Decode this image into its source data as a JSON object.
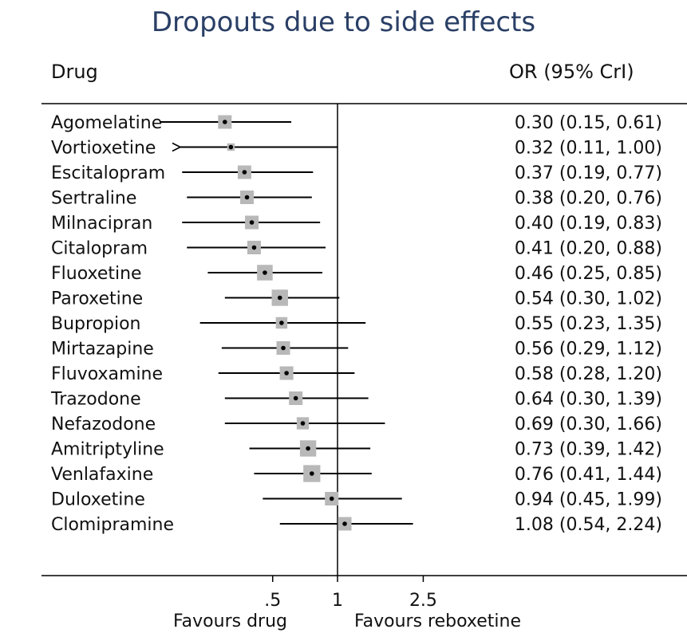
{
  "chart_data": {
    "type": "forest",
    "title": "Dropouts due to side effects",
    "column_headers": {
      "label": "Drug",
      "estimate": "OR (95% CrI)"
    },
    "reference_line": 1,
    "scale": "log",
    "x_ticks": [
      ".5",
      "1",
      "2.5"
    ],
    "x_tick_values": [
      0.5,
      1,
      2.5
    ],
    "favours_left": "Favours drug",
    "favours_right": "Favours reboxetine",
    "rows": [
      {
        "drug": "Agomelatine",
        "or": 0.3,
        "lo": 0.15,
        "hi": 0.61,
        "text": "0.30 (0.15, 0.61)",
        "weight": 1.0
      },
      {
        "drug": "Vortioxetine",
        "or": 0.32,
        "lo": 0.11,
        "hi": 1.0,
        "text": "0.32 (0.11, 1.00)",
        "weight": 0.55,
        "lo_arrow": true
      },
      {
        "drug": "Escitalopram",
        "or": 0.37,
        "lo": 0.19,
        "hi": 0.77,
        "text": "0.37 (0.19, 0.77)",
        "weight": 1.0
      },
      {
        "drug": "Sertraline",
        "or": 0.38,
        "lo": 0.2,
        "hi": 0.76,
        "text": "0.38 (0.20, 0.76)",
        "weight": 1.0
      },
      {
        "drug": "Milnacipran",
        "or": 0.4,
        "lo": 0.19,
        "hi": 0.83,
        "text": "0.40 (0.19, 0.83)",
        "weight": 1.0
      },
      {
        "drug": "Citalopram",
        "or": 0.41,
        "lo": 0.2,
        "hi": 0.88,
        "text": "0.41 (0.20, 0.88)",
        "weight": 1.0
      },
      {
        "drug": "Fluoxetine",
        "or": 0.46,
        "lo": 0.25,
        "hi": 0.85,
        "text": "0.46 (0.25, 0.85)",
        "weight": 1.15
      },
      {
        "drug": "Paroxetine",
        "or": 0.54,
        "lo": 0.3,
        "hi": 1.02,
        "text": "0.54 (0.30, 1.02)",
        "weight": 1.2
      },
      {
        "drug": "Bupropion",
        "or": 0.55,
        "lo": 0.23,
        "hi": 1.35,
        "text": "0.55 (0.23, 1.35)",
        "weight": 0.85
      },
      {
        "drug": "Mirtazapine",
        "or": 0.56,
        "lo": 0.29,
        "hi": 1.12,
        "text": "0.56 (0.29, 1.12)",
        "weight": 1.0
      },
      {
        "drug": "Fluvoxamine",
        "or": 0.58,
        "lo": 0.28,
        "hi": 1.2,
        "text": "0.58 (0.28, 1.20)",
        "weight": 1.0
      },
      {
        "drug": "Trazodone",
        "or": 0.64,
        "lo": 0.3,
        "hi": 1.39,
        "text": "0.64 (0.30, 1.39)",
        "weight": 1.0
      },
      {
        "drug": "Nefazodone",
        "or": 0.69,
        "lo": 0.3,
        "hi": 1.66,
        "text": "0.69 (0.30, 1.66)",
        "weight": 0.9
      },
      {
        "drug": "Amitriptyline",
        "or": 0.73,
        "lo": 0.39,
        "hi": 1.42,
        "text": "0.73 (0.39, 1.42)",
        "weight": 1.2
      },
      {
        "drug": "Venlafaxine",
        "or": 0.76,
        "lo": 0.41,
        "hi": 1.44,
        "text": "0.76 (0.41, 1.44)",
        "weight": 1.25
      },
      {
        "drug": "Duloxetine",
        "or": 0.94,
        "lo": 0.45,
        "hi": 1.99,
        "text": "0.94 (0.45, 1.99)",
        "weight": 1.0
      },
      {
        "drug": "Clomipramine",
        "or": 1.08,
        "lo": 0.54,
        "hi": 2.24,
        "text": "1.08 (0.54, 2.24)",
        "weight": 1.0
      }
    ]
  },
  "colors": {
    "title": "#2a3f66",
    "box": "#b8b8b8",
    "line": "#000000"
  }
}
